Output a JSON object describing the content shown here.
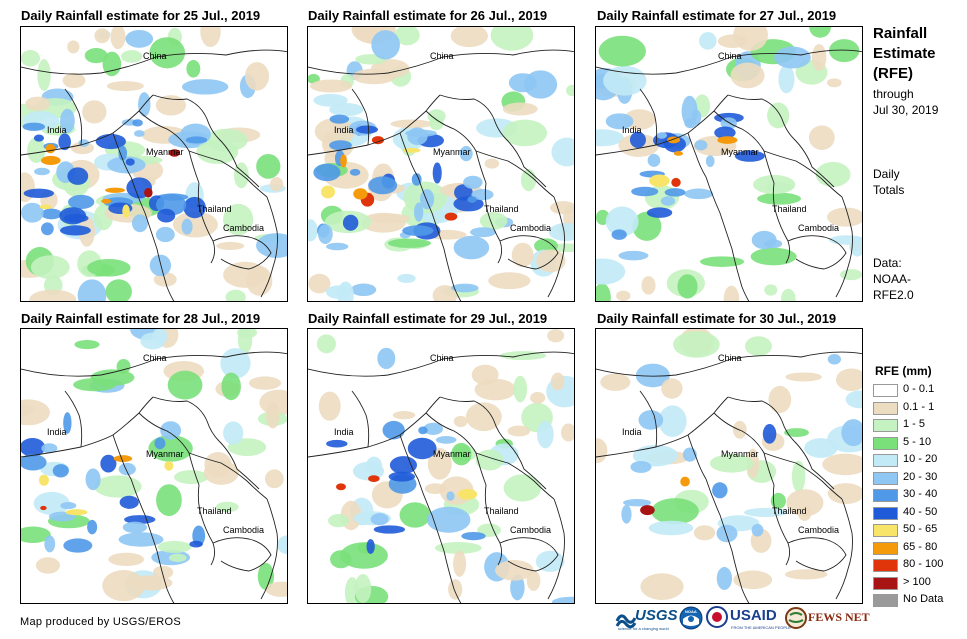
{
  "panels": [
    {
      "title": "Daily Rainfall estimate for 25 Jul., 2019",
      "labels": {
        "china": "China",
        "india": "India",
        "myanmar": "Myanmar",
        "thailand": "Thailand",
        "cambodia": "Cambodia"
      }
    },
    {
      "title": "Daily Rainfall estimate for 26 Jul., 2019",
      "labels": {
        "china": "China",
        "india": "India",
        "myanmar": "Myanmar",
        "thailand": "Thailand",
        "cambodia": "Cambodia"
      }
    },
    {
      "title": "Daily Rainfall estimate for 27 Jul., 2019",
      "labels": {
        "china": "China",
        "india": "India",
        "myanmar": "Myanmar",
        "thailand": "Thailand",
        "cambodia": "Cambodia"
      }
    },
    {
      "title": "Daily Rainfall estimate for 28 Jul., 2019",
      "labels": {
        "china": "China",
        "india": "India",
        "myanmar": "Myanmar",
        "thailand": "Thailand",
        "cambodia": "Cambodia"
      }
    },
    {
      "title": "Daily Rainfall estimate for 29 Jul., 2019",
      "labels": {
        "china": "China",
        "india": "India",
        "myanmar": "Myanmar",
        "thailand": "Thailand",
        "cambodia": "Cambodia"
      }
    },
    {
      "title": "Daily Rainfall estimate for 30 Jul., 2019",
      "labels": {
        "china": "China",
        "india": "India",
        "myanmar": "Myanmar",
        "thailand": "Thailand",
        "cambodia": "Cambodia"
      }
    }
  ],
  "sidebar": {
    "title_line1": "Rainfall",
    "title_line2": "Estimate",
    "title_line3": "(RFE)",
    "through_label": "through",
    "through_date": "Jul 30, 2019",
    "totals_line1": "Daily",
    "totals_line2": "Totals",
    "data_line1": "Data:",
    "data_line2": "NOAA-",
    "data_line3": "RFE2.0"
  },
  "legend": {
    "title": "RFE (mm)",
    "items": [
      {
        "label": "0 - 0.1",
        "color": "#ffffff"
      },
      {
        "label": "0.1 - 1",
        "color": "#ecdcc0"
      },
      {
        "label": "1 - 5",
        "color": "#c4f2c0"
      },
      {
        "label": "5 - 10",
        "color": "#7ae07a"
      },
      {
        "label": "10 - 20",
        "color": "#c2eaf6"
      },
      {
        "label": "20 - 30",
        "color": "#8ec6f4"
      },
      {
        "label": "30 - 40",
        "color": "#4f99e8"
      },
      {
        "label": "40 - 50",
        "color": "#1f5bd8"
      },
      {
        "label": "50 - 65",
        "color": "#f9e46a"
      },
      {
        "label": "65 - 80",
        "color": "#f59a0a"
      },
      {
        "label": "80 - 100",
        "color": "#e0350a"
      },
      {
        "label": "> 100",
        "color": "#a81414"
      },
      {
        "label": "No Data",
        "color": "#9a9a9a"
      }
    ]
  },
  "credit": "Map produced by USGS/EROS",
  "logos": {
    "usgs": "USGS",
    "usgs_tagline": "science for a changing world",
    "noaa": "NOAA",
    "usaid": "USAID",
    "usaid_tagline": "FROM THE AMERICAN PEOPLE",
    "fews": "FEWS NET"
  },
  "panel_rain": [
    {
      "light": 0.9,
      "heavy": 0.8
    },
    {
      "light": 0.85,
      "heavy": 0.7
    },
    {
      "light": 0.6,
      "heavy": 0.5
    },
    {
      "light": 0.55,
      "heavy": 0.45
    },
    {
      "light": 0.6,
      "heavy": 0.3
    },
    {
      "light": 0.45,
      "heavy": 0.2
    }
  ]
}
